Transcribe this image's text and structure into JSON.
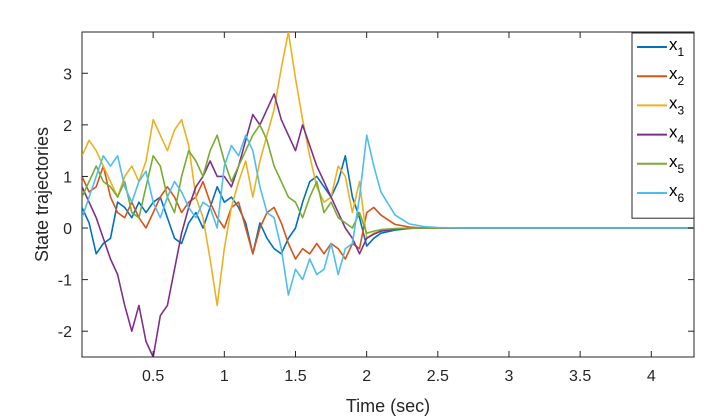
{
  "chart_data": {
    "type": "line",
    "xlabel": "Time (sec)",
    "ylabel": "State trajectories",
    "xlim": [
      0.0,
      4.3
    ],
    "ylim": [
      -2.5,
      3.8
    ],
    "xticks": [
      0.5,
      1,
      1.5,
      2,
      2.5,
      3,
      3.5,
      4
    ],
    "xtick_labels": [
      "0.5",
      "1",
      "1.5",
      "2",
      "2.5",
      "3",
      "3.5",
      "4"
    ],
    "yticks": [
      -2,
      -1,
      0,
      1,
      2,
      3
    ],
    "ytick_labels": [
      "-2",
      "-1",
      "0",
      "1",
      "2",
      "3"
    ],
    "legend_position": "top-right",
    "grid": false,
    "series": [
      {
        "name": "x1",
        "label_main": "x",
        "label_sub": "1",
        "color": "#0072BD",
        "x": [
          0.0,
          0.05,
          0.1,
          0.15,
          0.2,
          0.25,
          0.3,
          0.35,
          0.4,
          0.45,
          0.5,
          0.55,
          0.6,
          0.65,
          0.7,
          0.75,
          0.8,
          0.85,
          0.9,
          0.95,
          1.0,
          1.05,
          1.1,
          1.15,
          1.2,
          1.25,
          1.3,
          1.35,
          1.4,
          1.45,
          1.5,
          1.55,
          1.6,
          1.65,
          1.7,
          1.75,
          1.8,
          1.85,
          1.9,
          1.95,
          2.0,
          2.05,
          2.1,
          2.2,
          2.3,
          2.4,
          2.5,
          2.7,
          3.0,
          3.5,
          4.0,
          4.3
        ],
        "y": [
          0.4,
          0.1,
          -0.5,
          -0.3,
          -0.2,
          0.5,
          0.4,
          0.2,
          0.5,
          0.3,
          0.5,
          0.6,
          0.2,
          -0.2,
          -0.3,
          0.1,
          0.3,
          0.0,
          0.4,
          0.8,
          0.5,
          0.6,
          0.4,
          0.1,
          -0.5,
          0.1,
          -0.2,
          -0.4,
          -0.5,
          -0.2,
          0.0,
          0.5,
          0.9,
          1.0,
          0.8,
          0.6,
          0.9,
          1.4,
          0.6,
          0.2,
          -0.35,
          -0.2,
          -0.1,
          -0.04,
          -0.01,
          0.0,
          0.0,
          0.0,
          0.0,
          0.0,
          0.0,
          0.0
        ]
      },
      {
        "name": "x2",
        "label_main": "x",
        "label_sub": "2",
        "color": "#D95319",
        "x": [
          0.0,
          0.05,
          0.1,
          0.15,
          0.2,
          0.25,
          0.3,
          0.35,
          0.4,
          0.45,
          0.5,
          0.55,
          0.6,
          0.65,
          0.7,
          0.75,
          0.8,
          0.85,
          0.9,
          0.95,
          1.0,
          1.05,
          1.1,
          1.15,
          1.2,
          1.25,
          1.3,
          1.35,
          1.4,
          1.45,
          1.5,
          1.55,
          1.6,
          1.65,
          1.7,
          1.75,
          1.8,
          1.85,
          1.9,
          1.95,
          2.0,
          2.05,
          2.1,
          2.2,
          2.3,
          2.4,
          2.5,
          2.7,
          3.0,
          3.5,
          4.0,
          4.3
        ],
        "y": [
          1.0,
          0.7,
          0.8,
          1.2,
          0.6,
          0.3,
          0.2,
          0.5,
          0.2,
          0.0,
          0.3,
          0.6,
          0.8,
          0.6,
          0.3,
          0.5,
          0.6,
          0.9,
          0.5,
          0.2,
          0.0,
          0.4,
          0.5,
          0.0,
          -0.5,
          0.0,
          0.3,
          0.4,
          0.1,
          -0.3,
          -0.6,
          -0.4,
          -0.5,
          -0.3,
          -0.5,
          -0.3,
          -0.4,
          -0.6,
          -0.3,
          -0.4,
          0.3,
          0.4,
          0.25,
          0.07,
          0.02,
          0.0,
          0.0,
          0.0,
          0.0,
          0.0,
          0.0,
          0.0
        ]
      },
      {
        "name": "x3",
        "label_main": "x",
        "label_sub": "3",
        "color": "#EDB120",
        "x": [
          0.0,
          0.05,
          0.1,
          0.15,
          0.2,
          0.25,
          0.3,
          0.35,
          0.4,
          0.45,
          0.5,
          0.55,
          0.6,
          0.65,
          0.7,
          0.75,
          0.8,
          0.85,
          0.9,
          0.95,
          1.0,
          1.05,
          1.1,
          1.15,
          1.2,
          1.25,
          1.3,
          1.35,
          1.4,
          1.45,
          1.5,
          1.55,
          1.6,
          1.65,
          1.7,
          1.75,
          1.8,
          1.85,
          1.9,
          1.95,
          2.0,
          2.05,
          2.1,
          2.2,
          2.3,
          2.4,
          2.5,
          2.7,
          3.0,
          3.5,
          4.0,
          4.3
        ],
        "y": [
          1.4,
          1.7,
          1.5,
          1.2,
          0.9,
          0.6,
          1.0,
          1.2,
          0.9,
          1.3,
          2.1,
          1.8,
          1.5,
          1.9,
          2.1,
          1.6,
          0.6,
          0.2,
          -0.6,
          -1.5,
          -0.4,
          0.4,
          0.9,
          1.3,
          0.6,
          1.3,
          1.8,
          2.3,
          3.1,
          3.8,
          2.9,
          2.1,
          1.4,
          0.8,
          0.5,
          0.6,
          1.2,
          1.0,
          0.3,
          0.9,
          -0.2,
          -0.1,
          -0.06,
          -0.02,
          0.0,
          0.0,
          0.0,
          0.0,
          0.0,
          0.0,
          0.0,
          0.0
        ]
      },
      {
        "name": "x4",
        "label_main": "x",
        "label_sub": "4",
        "color": "#7E2F8E",
        "x": [
          0.0,
          0.05,
          0.1,
          0.15,
          0.2,
          0.25,
          0.3,
          0.35,
          0.4,
          0.45,
          0.5,
          0.55,
          0.6,
          0.65,
          0.7,
          0.75,
          0.8,
          0.85,
          0.9,
          0.95,
          1.0,
          1.05,
          1.1,
          1.15,
          1.2,
          1.25,
          1.3,
          1.35,
          1.4,
          1.45,
          1.5,
          1.55,
          1.6,
          1.65,
          1.7,
          1.75,
          1.8,
          1.85,
          1.9,
          1.95,
          2.0,
          2.05,
          2.1,
          2.2,
          2.3,
          2.4,
          2.5,
          2.7,
          3.0,
          3.5,
          4.0,
          4.3
        ],
        "y": [
          0.8,
          0.5,
          0.2,
          -0.2,
          -0.6,
          -0.9,
          -1.5,
          -2.0,
          -1.5,
          -2.2,
          -2.5,
          -1.7,
          -1.5,
          -0.8,
          -0.1,
          0.4,
          0.8,
          1.0,
          1.3,
          1.0,
          1.0,
          0.8,
          1.2,
          1.7,
          2.2,
          2.0,
          2.3,
          2.6,
          2.1,
          1.8,
          1.5,
          2.0,
          1.6,
          1.2,
          0.9,
          0.6,
          0.3,
          0.0,
          -0.2,
          -0.5,
          -0.2,
          -0.12,
          -0.06,
          -0.02,
          0.0,
          0.0,
          0.0,
          0.0,
          0.0,
          0.0,
          0.0,
          0.0
        ]
      },
      {
        "name": "x5",
        "label_main": "x",
        "label_sub": "5",
        "color": "#77AC30",
        "x": [
          0.0,
          0.05,
          0.1,
          0.15,
          0.2,
          0.25,
          0.3,
          0.35,
          0.4,
          0.45,
          0.5,
          0.55,
          0.6,
          0.65,
          0.7,
          0.75,
          0.8,
          0.85,
          0.9,
          0.95,
          1.0,
          1.05,
          1.1,
          1.15,
          1.2,
          1.25,
          1.3,
          1.35,
          1.4,
          1.45,
          1.5,
          1.55,
          1.6,
          1.65,
          1.7,
          1.75,
          1.8,
          1.85,
          1.9,
          1.95,
          2.0,
          2.05,
          2.1,
          2.2,
          2.3,
          2.4,
          2.5,
          2.7,
          3.0,
          3.5,
          4.0,
          4.3
        ],
        "y": [
          0.6,
          0.9,
          1.2,
          0.9,
          0.8,
          0.6,
          0.9,
          0.3,
          0.2,
          0.8,
          1.4,
          1.2,
          0.6,
          0.3,
          1.0,
          1.5,
          1.3,
          1.0,
          1.5,
          1.8,
          1.3,
          0.9,
          1.2,
          1.5,
          1.8,
          2.0,
          1.7,
          1.2,
          0.9,
          0.6,
          0.5,
          0.2,
          0.6,
          0.9,
          0.3,
          0.5,
          0.2,
          0.1,
          0.0,
          0.3,
          -0.1,
          -0.06,
          -0.03,
          -0.01,
          0.0,
          0.0,
          0.0,
          0.0,
          0.0,
          0.0,
          0.0,
          0.0
        ]
      },
      {
        "name": "x6",
        "label_main": "x",
        "label_sub": "6",
        "color": "#4DBEEE",
        "x": [
          0.0,
          0.05,
          0.1,
          0.15,
          0.2,
          0.25,
          0.3,
          0.35,
          0.4,
          0.45,
          0.5,
          0.55,
          0.6,
          0.65,
          0.7,
          0.75,
          0.8,
          0.85,
          0.9,
          0.95,
          1.0,
          1.05,
          1.1,
          1.15,
          1.2,
          1.25,
          1.3,
          1.35,
          1.4,
          1.45,
          1.5,
          1.55,
          1.6,
          1.65,
          1.7,
          1.75,
          1.8,
          1.85,
          1.9,
          1.95,
          2.0,
          2.05,
          2.1,
          2.2,
          2.3,
          2.4,
          2.5,
          2.7,
          3.0,
          3.5,
          4.0,
          4.3
        ],
        "y": [
          0.2,
          0.6,
          1.0,
          1.4,
          1.2,
          1.4,
          0.8,
          0.5,
          0.9,
          1.1,
          0.5,
          0.2,
          0.6,
          0.9,
          0.7,
          0.4,
          0.2,
          0.5,
          0.4,
          0.0,
          1.2,
          1.6,
          1.4,
          1.8,
          1.5,
          0.8,
          0.3,
          0.2,
          -0.4,
          -1.3,
          -0.8,
          -1.0,
          -0.6,
          -0.9,
          -0.8,
          -0.3,
          -0.9,
          -0.4,
          -0.3,
          0.6,
          1.8,
          1.2,
          0.7,
          0.25,
          0.08,
          0.03,
          0.01,
          0.0,
          0.0,
          0.0,
          0.0,
          0.0
        ]
      }
    ]
  }
}
